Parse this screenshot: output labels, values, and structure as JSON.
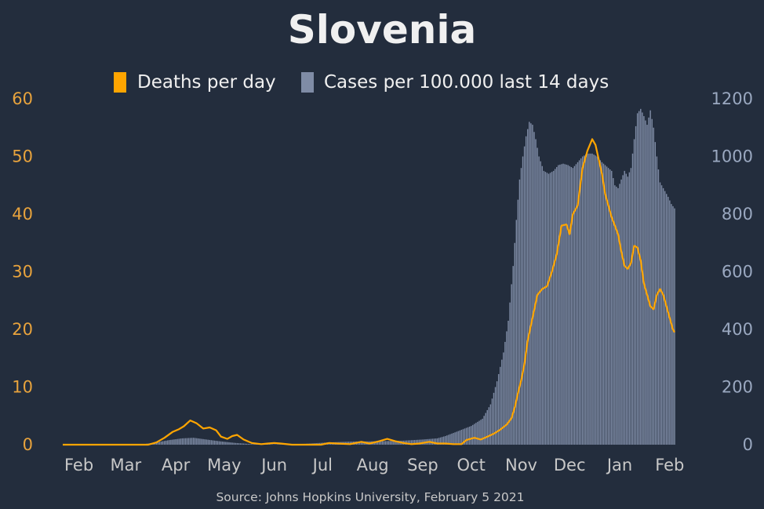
{
  "chart_data": {
    "type": "bar+line",
    "title": "Slovenia",
    "source": "Source: Johns Hopkins University, February 5 2021",
    "colors": {
      "background": "#232d3d",
      "deaths": "#ffa500",
      "cases": "#7f8ca6",
      "title": "#f0f0f0",
      "xtick": "#c8c8c8",
      "left_axis": "#e8a33d",
      "right_axis": "#9aa8c0"
    },
    "legend": [
      {
        "label": "Deaths per day",
        "color": "#ffa500",
        "icon": "legend-swatch"
      },
      {
        "label": "Cases per 100.000 last 14 days",
        "color": "#7f8ca6",
        "icon": "legend-swatch"
      }
    ],
    "x_range": [
      "2020-01-22",
      "2021-02-04"
    ],
    "x_ticks": [
      {
        "label": "Feb",
        "date": "2020-02-01"
      },
      {
        "label": "Mar",
        "date": "2020-03-01"
      },
      {
        "label": "Apr",
        "date": "2020-04-01"
      },
      {
        "label": "May",
        "date": "2020-05-01"
      },
      {
        "label": "Jun",
        "date": "2020-06-01"
      },
      {
        "label": "Jul",
        "date": "2020-07-01"
      },
      {
        "label": "Aug",
        "date": "2020-08-01"
      },
      {
        "label": "Sep",
        "date": "2020-09-01"
      },
      {
        "label": "Oct",
        "date": "2020-10-01"
      },
      {
        "label": "Nov",
        "date": "2020-11-01"
      },
      {
        "label": "Dec",
        "date": "2020-12-01"
      },
      {
        "label": "Jan",
        "date": "2021-01-01"
      },
      {
        "label": "Feb",
        "date": "2021-02-01"
      }
    ],
    "y_left": {
      "min": 0,
      "max": 60,
      "ticks": [
        "0",
        "10",
        "20",
        "30",
        "40",
        "50",
        "60"
      ]
    },
    "y_right": {
      "min": 0,
      "max": 1200,
      "ticks": [
        "0",
        "200",
        "400",
        "600",
        "800",
        "1000",
        "1200"
      ]
    },
    "series": [
      {
        "name": "Deaths per day",
        "kind": "line",
        "axis": "left",
        "points": [
          [
            "2020-01-22",
            0
          ],
          [
            "2020-03-15",
            0
          ],
          [
            "2020-03-20",
            0.4
          ],
          [
            "2020-03-25",
            1.2
          ],
          [
            "2020-03-30",
            2.2
          ],
          [
            "2020-04-03",
            2.7
          ],
          [
            "2020-04-06",
            3.2
          ],
          [
            "2020-04-10",
            4.2
          ],
          [
            "2020-04-14",
            3.7
          ],
          [
            "2020-04-18",
            2.8
          ],
          [
            "2020-04-22",
            3.0
          ],
          [
            "2020-04-26",
            2.5
          ],
          [
            "2020-04-29",
            1.4
          ],
          [
            "2020-05-03",
            1.0
          ],
          [
            "2020-05-06",
            1.5
          ],
          [
            "2020-05-09",
            1.7
          ],
          [
            "2020-05-13",
            0.9
          ],
          [
            "2020-05-18",
            0.3
          ],
          [
            "2020-05-24",
            0.1
          ],
          [
            "2020-05-28",
            0.2
          ],
          [
            "2020-06-01",
            0.3
          ],
          [
            "2020-06-05",
            0.2
          ],
          [
            "2020-06-12",
            0
          ],
          [
            "2020-06-30",
            0
          ],
          [
            "2020-07-05",
            0.3
          ],
          [
            "2020-07-10",
            0.2
          ],
          [
            "2020-07-18",
            0.1
          ],
          [
            "2020-07-25",
            0.5
          ],
          [
            "2020-07-30",
            0.2
          ],
          [
            "2020-08-05",
            0.6
          ],
          [
            "2020-08-10",
            1.0
          ],
          [
            "2020-08-15",
            0.6
          ],
          [
            "2020-08-20",
            0.3
          ],
          [
            "2020-08-25",
            0.1
          ],
          [
            "2020-08-30",
            0.2
          ],
          [
            "2020-09-05",
            0.5
          ],
          [
            "2020-09-10",
            0.2
          ],
          [
            "2020-09-15",
            0.2
          ],
          [
            "2020-09-20",
            0.1
          ],
          [
            "2020-09-25",
            0.1
          ],
          [
            "2020-09-28",
            0.8
          ],
          [
            "2020-10-03",
            1.2
          ],
          [
            "2020-10-07",
            0.9
          ],
          [
            "2020-10-11",
            1.4
          ],
          [
            "2020-10-15",
            1.9
          ],
          [
            "2020-10-19",
            2.6
          ],
          [
            "2020-10-23",
            3.5
          ],
          [
            "2020-10-26",
            4.6
          ],
          [
            "2020-10-28",
            6.5
          ],
          [
            "2020-10-30",
            9.0
          ],
          [
            "2020-11-01",
            11.2
          ],
          [
            "2020-11-03",
            14.0
          ],
          [
            "2020-11-05",
            18.0
          ],
          [
            "2020-11-08",
            22.0
          ],
          [
            "2020-11-11",
            26.0
          ],
          [
            "2020-11-14",
            27.0
          ],
          [
            "2020-11-17",
            27.5
          ],
          [
            "2020-11-20",
            30.0
          ],
          [
            "2020-11-23",
            33.0
          ],
          [
            "2020-11-26",
            38.0
          ],
          [
            "2020-11-29",
            38.2
          ],
          [
            "2020-12-01",
            36.5
          ],
          [
            "2020-12-03",
            40.0
          ],
          [
            "2020-12-06",
            41.5
          ],
          [
            "2020-12-09",
            48.0
          ],
          [
            "2020-12-12",
            51.0
          ],
          [
            "2020-12-15",
            53.0
          ],
          [
            "2020-12-17",
            52.0
          ],
          [
            "2020-12-19",
            49.5
          ],
          [
            "2020-12-21",
            47.0
          ],
          [
            "2020-12-23",
            43.5
          ],
          [
            "2020-12-25",
            41.5
          ],
          [
            "2020-12-27",
            39.5
          ],
          [
            "2020-12-29",
            38.0
          ],
          [
            "2020-12-31",
            36.5
          ],
          [
            "2021-01-02",
            33.5
          ],
          [
            "2021-01-04",
            31.0
          ],
          [
            "2021-01-06",
            30.5
          ],
          [
            "2021-01-08",
            31.5
          ],
          [
            "2021-01-10",
            34.5
          ],
          [
            "2021-01-12",
            34.2
          ],
          [
            "2021-01-14",
            32.0
          ],
          [
            "2021-01-16",
            28.0
          ],
          [
            "2021-01-18",
            26.0
          ],
          [
            "2021-01-20",
            24.0
          ],
          [
            "2021-01-22",
            23.5
          ],
          [
            "2021-01-24",
            26.0
          ],
          [
            "2021-01-26",
            27.0
          ],
          [
            "2021-01-28",
            26.0
          ],
          [
            "2021-01-30",
            24.0
          ],
          [
            "2021-02-01",
            22.0
          ],
          [
            "2021-02-03",
            20.0
          ],
          [
            "2021-02-04",
            19.5
          ]
        ]
      },
      {
        "name": "Cases per 100.000 last 14 days",
        "kind": "bar",
        "axis": "right",
        "points": [
          [
            "2020-01-22",
            0
          ],
          [
            "2020-03-05",
            0
          ],
          [
            "2020-03-12",
            2
          ],
          [
            "2020-03-20",
            8
          ],
          [
            "2020-03-28",
            16
          ],
          [
            "2020-04-05",
            22
          ],
          [
            "2020-04-12",
            24
          ],
          [
            "2020-04-20",
            18
          ],
          [
            "2020-04-28",
            12
          ],
          [
            "2020-05-08",
            6
          ],
          [
            "2020-05-18",
            2
          ],
          [
            "2020-06-05",
            1
          ],
          [
            "2020-06-20",
            3
          ],
          [
            "2020-07-05",
            8
          ],
          [
            "2020-07-20",
            11
          ],
          [
            "2020-08-05",
            12
          ],
          [
            "2020-08-20",
            14
          ],
          [
            "2020-09-01",
            18
          ],
          [
            "2020-09-10",
            22
          ],
          [
            "2020-09-15",
            30
          ],
          [
            "2020-09-22",
            45
          ],
          [
            "2020-10-01",
            65
          ],
          [
            "2020-10-08",
            90
          ],
          [
            "2020-10-13",
            140
          ],
          [
            "2020-10-17",
            220
          ],
          [
            "2020-10-21",
            320
          ],
          [
            "2020-10-24",
            430
          ],
          [
            "2020-10-27",
            620
          ],
          [
            "2020-10-29",
            780
          ],
          [
            "2020-10-31",
            920
          ],
          [
            "2020-11-02",
            1000
          ],
          [
            "2020-11-04",
            1070
          ],
          [
            "2020-11-06",
            1120
          ],
          [
            "2020-11-08",
            1110
          ],
          [
            "2020-11-10",
            1060
          ],
          [
            "2020-11-12",
            1000
          ],
          [
            "2020-11-15",
            950
          ],
          [
            "2020-11-18",
            940
          ],
          [
            "2020-11-21",
            950
          ],
          [
            "2020-11-24",
            970
          ],
          [
            "2020-11-27",
            975
          ],
          [
            "2020-11-30",
            970
          ],
          [
            "2020-12-03",
            960
          ],
          [
            "2020-12-06",
            980
          ],
          [
            "2020-12-09",
            1000
          ],
          [
            "2020-12-12",
            1010
          ],
          [
            "2020-12-15",
            1010
          ],
          [
            "2020-12-18",
            1000
          ],
          [
            "2020-12-21",
            980
          ],
          [
            "2020-12-24",
            965
          ],
          [
            "2020-12-27",
            950
          ],
          [
            "2020-12-29",
            900
          ],
          [
            "2020-12-31",
            890
          ],
          [
            "2021-01-02",
            920
          ],
          [
            "2021-01-04",
            950
          ],
          [
            "2021-01-06",
            930
          ],
          [
            "2021-01-08",
            960
          ],
          [
            "2021-01-10",
            1060
          ],
          [
            "2021-01-12",
            1150
          ],
          [
            "2021-01-14",
            1165
          ],
          [
            "2021-01-16",
            1140
          ],
          [
            "2021-01-18",
            1110
          ],
          [
            "2021-01-20",
            1160
          ],
          [
            "2021-01-22",
            1100
          ],
          [
            "2021-01-24",
            1000
          ],
          [
            "2021-01-26",
            910
          ],
          [
            "2021-01-28",
            890
          ],
          [
            "2021-01-31",
            860
          ],
          [
            "2021-02-02",
            835
          ],
          [
            "2021-02-04",
            820
          ]
        ]
      }
    ]
  }
}
